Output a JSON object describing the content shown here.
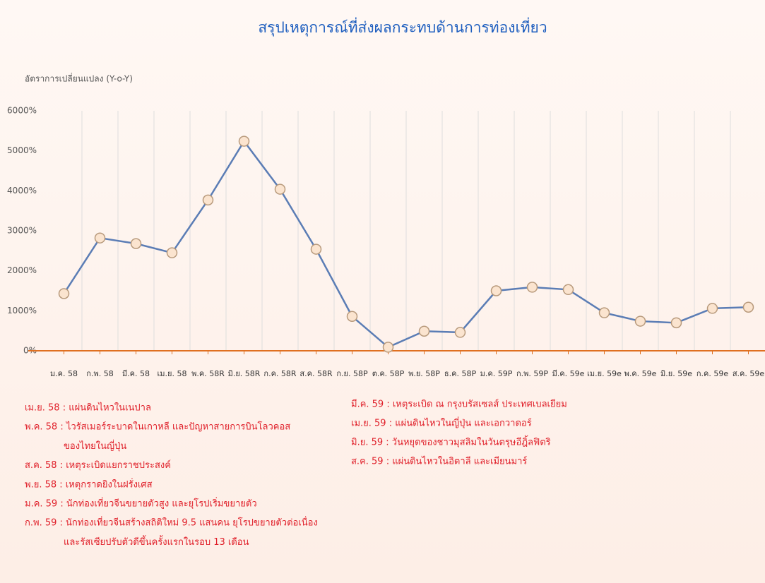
{
  "chart_data": {
    "type": "line",
    "title": "สรุปเหตุการณ์ที่ส่งผลกระทบด้านการท่องเที่ยว",
    "y_label": "อัตราการเปลี่ยนแปลง (Y-o-Y)",
    "categories": [
      "ม.ค. 58",
      "ก.พ. 58",
      "มี.ค. 58",
      "เม.ย. 58",
      "พ.ค. 58R",
      "มิ.ย. 58R",
      "ก.ค. 58R",
      "ส.ค. 58R",
      "ก.ย. 58P",
      "ต.ค. 58P",
      "พ.ย. 58P",
      "ธ.ค. 58P",
      "ม.ค. 59P",
      "ก.พ. 59P",
      "มี.ค. 59e",
      "เม.ย. 59e",
      "พ.ค. 59e",
      "มิ.ย. 59e",
      "ก.ค. 59e",
      "ส.ค. 59e"
    ],
    "values": [
      1430,
      2820,
      2680,
      2450,
      3770,
      5240,
      4040,
      2540,
      860,
      90,
      490,
      460,
      1500,
      1590,
      1530,
      950,
      740,
      700,
      1060,
      1090
    ],
    "color": "#5b7db5",
    "ylim": [
      0,
      6000
    ],
    "yticks": [
      {
        "value": 0,
        "label": "0%"
      },
      {
        "value": 1000,
        "label": "1000%"
      },
      {
        "value": 2000,
        "label": "2000%"
      },
      {
        "value": 3000,
        "label": "3000%"
      },
      {
        "value": 4000,
        "label": "4000%"
      },
      {
        "value": 5000,
        "label": "5000%"
      },
      {
        "value": 6000,
        "label": "6000%"
      }
    ],
    "grid": true,
    "notes_left": [
      [
        "เม.ย. 58 : แผ่นดินไหวในเนปาล"
      ],
      [
        "พ.ค. 58 : ไวรัสเมอร์ระบาดในเกาหลี และปัญหาสายการบินโลวคอส",
        "ของไทยในญี่ปุ่น"
      ],
      [
        "ส.ค. 58 : เหตุระเบิดแยกราชประสงค์"
      ],
      [
        "พ.ย. 58 : เหตุกราดยิงในฝรั่งเศส"
      ],
      [
        "ม.ค. 59 : นักท่องเที่ยวจีนขยายตัวสูง และยุโรปเริ่มขยายตัว"
      ],
      [
        "ก.พ. 59 : นักท่องเที่ยวจีนสร้างสถิติใหม่ 9.5 แสนคน ยุโรปขยายตัวต่อเนื่อง",
        "และรัสเซียปรับตัวดีขึ้นครั้งแรกในรอบ 13 เดือน"
      ]
    ],
    "notes_right": [
      [
        "มี.ค. 59 : เหตุระเบิด ณ กรุงบรัสเซลส์ ประเทศเบลเยียม"
      ],
      [
        "เม.ย. 59 : แผ่นดินไหวในญี่ปุ่น และเอกวาดอร์"
      ],
      [
        "มิ.ย. 59  : วันหยุดของชาวมุสลิมในวันตรุษอีฎิ้ลฟิตริ"
      ],
      [
        "ส.ค. 59 : แผ่นดินไหวในอิตาลี และเมียนมาร์"
      ]
    ]
  }
}
